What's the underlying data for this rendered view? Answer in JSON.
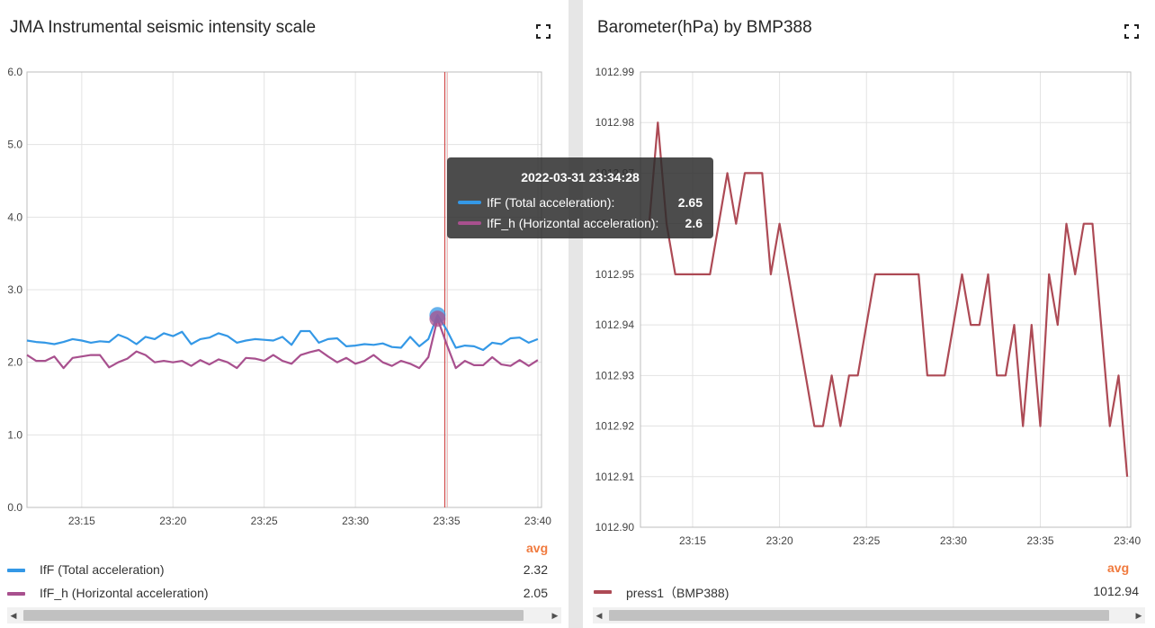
{
  "charts": [
    {
      "title": "JMA Instrumental seismic intensity scale",
      "avg_header": "avg",
      "legend": [
        {
          "name": "IfF (Total acceleration)",
          "avg": "2.32",
          "color": "#3498e6"
        },
        {
          "name": "IfF_h (Horizontal acceleration)",
          "avg": "2.05",
          "color": "#a8508e"
        }
      ],
      "tooltip": {
        "time": "2022-03-31 23:34:28",
        "rows": [
          {
            "name": "IfF (Total acceleration):",
            "value": "2.65",
            "color": "#3498e6"
          },
          {
            "name": "IfF_h (Horizontal acceleration):",
            "value": "2.6",
            "color": "#a8508e"
          }
        ]
      }
    },
    {
      "title": "Barometer(hPa) by BMP388",
      "avg_header": "avg",
      "legend": [
        {
          "name": "press1（BMP388)",
          "avg": "1012.94",
          "color": "#ad4a55"
        }
      ]
    }
  ],
  "chart_data": [
    {
      "type": "line",
      "title": "JMA Instrumental seismic intensity scale",
      "x_unit": "minutes after 23:00",
      "x_range": [
        12,
        40.2
      ],
      "ylim": [
        0,
        6
      ],
      "yticks": [
        "0.0",
        "1.0",
        "2.0",
        "3.0",
        "4.0",
        "5.0",
        "6.0"
      ],
      "xticks": [
        {
          "label": "23:15",
          "value": 15
        },
        {
          "label": "23:20",
          "value": 20
        },
        {
          "label": "23:25",
          "value": 25
        },
        {
          "label": "23:30",
          "value": 30
        },
        {
          "label": "23:35",
          "value": 35
        },
        {
          "label": "23:40",
          "value": 40
        }
      ],
      "marker_x": 34.9,
      "hover_x": 34.5,
      "series": [
        {
          "name": "IfF (Total acceleration)",
          "color": "#3498e6",
          "x": [
            12,
            12.5,
            13,
            13.5,
            14,
            14.5,
            15,
            15.5,
            16,
            16.5,
            17,
            17.5,
            18,
            18.5,
            19,
            19.5,
            20,
            20.5,
            21,
            21.5,
            22,
            22.5,
            23,
            23.5,
            24,
            24.5,
            25,
            25.5,
            26,
            26.5,
            27,
            27.5,
            28,
            28.5,
            29,
            29.5,
            30,
            30.5,
            31,
            31.5,
            32,
            32.5,
            33,
            33.5,
            34,
            34.5,
            35,
            35.5,
            36,
            36.5,
            37,
            37.5,
            38,
            38.5,
            39,
            39.5,
            40
          ],
          "values": [
            2.3,
            2.28,
            2.27,
            2.25,
            2.28,
            2.32,
            2.3,
            2.27,
            2.29,
            2.28,
            2.38,
            2.33,
            2.25,
            2.35,
            2.32,
            2.4,
            2.36,
            2.42,
            2.25,
            2.32,
            2.34,
            2.4,
            2.36,
            2.27,
            2.3,
            2.32,
            2.31,
            2.3,
            2.35,
            2.24,
            2.43,
            2.43,
            2.27,
            2.32,
            2.33,
            2.22,
            2.23,
            2.25,
            2.24,
            2.26,
            2.21,
            2.2,
            2.35,
            2.22,
            2.32,
            2.65,
            2.45,
            2.2,
            2.23,
            2.22,
            2.17,
            2.27,
            2.25,
            2.33,
            2.34,
            2.27,
            2.32
          ]
        },
        {
          "name": "IfF_h (Horizontal acceleration)",
          "color": "#a8508e",
          "x": [
            12,
            12.5,
            13,
            13.5,
            14,
            14.5,
            15,
            15.5,
            16,
            16.5,
            17,
            17.5,
            18,
            18.5,
            19,
            19.5,
            20,
            20.5,
            21,
            21.5,
            22,
            22.5,
            23,
            23.5,
            24,
            24.5,
            25,
            25.5,
            26,
            26.5,
            27,
            27.5,
            28,
            28.5,
            29,
            29.5,
            30,
            30.5,
            31,
            31.5,
            32,
            32.5,
            33,
            33.5,
            34,
            34.5,
            35,
            35.5,
            36,
            36.5,
            37,
            37.5,
            38,
            38.5,
            39,
            39.5,
            40
          ],
          "values": [
            2.1,
            2.02,
            2.02,
            2.08,
            1.92,
            2.06,
            2.08,
            2.1,
            2.1,
            1.93,
            2.0,
            2.05,
            2.15,
            2.1,
            2.0,
            2.02,
            2.0,
            2.02,
            1.95,
            2.03,
            1.97,
            2.04,
            2.0,
            1.92,
            2.06,
            2.05,
            2.02,
            2.1,
            2.02,
            1.98,
            2.1,
            2.14,
            2.17,
            2.08,
            2.0,
            2.06,
            1.98,
            2.02,
            2.1,
            2.0,
            1.95,
            2.02,
            1.98,
            1.92,
            2.07,
            2.6,
            2.25,
            1.92,
            2.02,
            1.96,
            1.96,
            2.07,
            1.97,
            1.95,
            2.03,
            1.95,
            2.03
          ]
        }
      ]
    },
    {
      "type": "line",
      "title": "Barometer(hPa) by BMP388",
      "x_unit": "minutes after 23:00",
      "x_range": [
        12,
        40.2
      ],
      "ylim": [
        1012.9,
        1012.99
      ],
      "yticks": [
        "1012.90",
        "1012.91",
        "1012.92",
        "1012.93",
        "1012.94",
        "1012.95",
        "1012.96",
        "1012.97",
        "1012.98",
        "1012.99"
      ],
      "xticks": [
        {
          "label": "23:15",
          "value": 15
        },
        {
          "label": "23:20",
          "value": 20
        },
        {
          "label": "23:25",
          "value": 25
        },
        {
          "label": "23:30",
          "value": 30
        },
        {
          "label": "23:35",
          "value": 35
        },
        {
          "label": "23:40",
          "value": 40
        }
      ],
      "series": [
        {
          "name": "press1（BMP388)",
          "color": "#ad4a55",
          "x": [
            12.5,
            13,
            13.5,
            14,
            14.5,
            15,
            15.5,
            16,
            16.5,
            17,
            17.5,
            18,
            18.5,
            19,
            19.5,
            20,
            20.5,
            21,
            21.5,
            22,
            22.5,
            23,
            23.5,
            24,
            24.5,
            25,
            25.5,
            26,
            26.5,
            27,
            27.5,
            28,
            28.5,
            29,
            29.5,
            30,
            30.5,
            31,
            31.5,
            32,
            32.5,
            33,
            33.5,
            34,
            34.5,
            35,
            35.5,
            36,
            36.5,
            37,
            37.5,
            38,
            38.5,
            39,
            39.5,
            40
          ],
          "values": [
            1012.96,
            1012.98,
            1012.96,
            1012.95,
            1012.95,
            1012.95,
            1012.95,
            1012.95,
            1012.96,
            1012.97,
            1012.96,
            1012.97,
            1012.97,
            1012.97,
            1012.95,
            1012.96,
            1012.95,
            1012.94,
            1012.93,
            1012.92,
            1012.92,
            1012.93,
            1012.92,
            1012.93,
            1012.93,
            1012.94,
            1012.95,
            1012.95,
            1012.95,
            1012.95,
            1012.95,
            1012.95,
            1012.93,
            1012.93,
            1012.93,
            1012.94,
            1012.95,
            1012.94,
            1012.94,
            1012.95,
            1012.93,
            1012.93,
            1012.94,
            1012.92,
            1012.94,
            1012.92,
            1012.95,
            1012.94,
            1012.96,
            1012.95,
            1012.96,
            1012.96,
            1012.94,
            1012.92,
            1012.93,
            1012.91
          ]
        }
      ]
    }
  ]
}
